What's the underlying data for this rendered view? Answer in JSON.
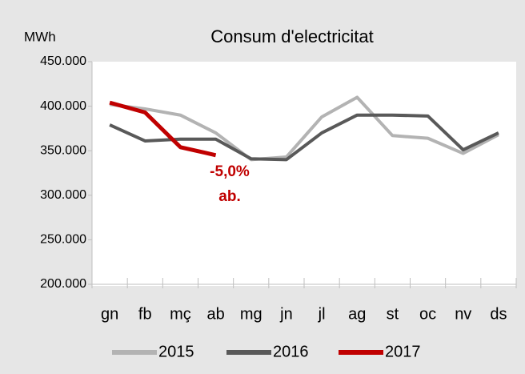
{
  "chart_data": {
    "type": "line",
    "title": "Consum d'electricitat",
    "y_label": "MWh",
    "categories": [
      "gn",
      "fb",
      "mç",
      "ab",
      "mg",
      "jn",
      "jl",
      "ag",
      "st",
      "oc",
      "nv",
      "ds"
    ],
    "series": [
      {
        "name": "2015",
        "color": "#b3b3b3",
        "values": [
          402000,
          397000,
          390000,
          370000,
          340000,
          343000,
          388000,
          410000,
          367000,
          364000,
          347000,
          368000
        ]
      },
      {
        "name": "2016",
        "color": "#595959",
        "values": [
          379000,
          361000,
          363000,
          363000,
          341000,
          340000,
          370000,
          390000,
          390000,
          389000,
          351000,
          370000
        ]
      },
      {
        "name": "2017",
        "color": "#c00000",
        "values": [
          404000,
          393000,
          354000,
          345000,
          null,
          null,
          null,
          null,
          null,
          null,
          null,
          null
        ]
      }
    ],
    "annotations": [
      "-5,0%",
      "ab."
    ],
    "ylim": [
      200000,
      450000
    ],
    "yticks": [
      {
        "value": 200000,
        "label": "200.000"
      },
      {
        "value": 250000,
        "label": "250.000"
      },
      {
        "value": 300000,
        "label": "300.000"
      },
      {
        "value": 350000,
        "label": "350.000"
      },
      {
        "value": 400000,
        "label": "400.000"
      },
      {
        "value": 450000,
        "label": "450.000"
      }
    ],
    "grid": false,
    "legend": "bottom"
  }
}
